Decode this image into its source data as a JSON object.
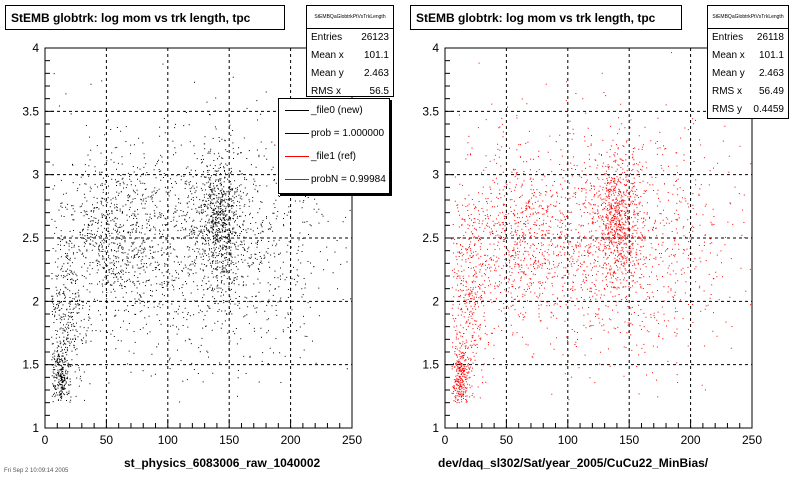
{
  "colors": {
    "ref": "#ff0000",
    "new": "#000000",
    "frame": "#000000",
    "grid": "#000000"
  },
  "panels": [
    {
      "title": "StEMB globtrk: log mom vs trk length, tpc",
      "stats": {
        "name": "StEMBQaGlobtrkPtVsTrkLength",
        "rows": [
          {
            "label": "Entries",
            "value": "26123"
          },
          {
            "label": "Mean x",
            "value": "101.1"
          },
          {
            "label": "Mean y",
            "value": "2.463"
          },
          {
            "label": "RMS x",
            "value": "56.5"
          }
        ]
      },
      "legend": [
        {
          "label": "_file0 (new)",
          "color": "#000000"
        },
        {
          "label": "prob = 1.000000",
          "color": "#000000"
        },
        {
          "label": "_file1 (ref)",
          "color": "#ff0000"
        },
        {
          "label": "probN = 0.99984",
          "color": "#ff0000"
        }
      ],
      "xtitle": "st_physics_6083006_raw_1040002"
    },
    {
      "title": "StEMB globtrk: log mom vs trk length, tpc",
      "stats": {
        "name": "StEMBQaGlobtrkPtVsTrkLength",
        "rows": [
          {
            "label": "Entries",
            "value": "26118"
          },
          {
            "label": "Mean x",
            "value": "101.1"
          },
          {
            "label": "Mean y",
            "value": "2.463"
          },
          {
            "label": "RMS x",
            "value": "56.49"
          },
          {
            "label": "RMS y",
            "value": "0.4459"
          }
        ]
      },
      "xtitle": "dev/daq_sl302/Sat/year_2005/CuCu22_MinBias/"
    }
  ],
  "footer": "Fri Sep 2 10:09:14 2005",
  "chart_data": [
    {
      "type": "scatter",
      "title": "StEMB globtrk: log mom vs trk length, tpc",
      "xlabel": "st_physics_6083006_raw_1040002",
      "ylabel": "",
      "xlim": [
        0,
        250
      ],
      "ylim": [
        1,
        4
      ],
      "xticks": [
        0,
        50,
        100,
        150,
        200,
        250
      ],
      "yticks": [
        1,
        1.5,
        2,
        2.5,
        3,
        3.5,
        4
      ],
      "grid": true,
      "color": "#000000",
      "legend_position": "top-right",
      "entries": 26123,
      "mean_x": 101.1,
      "mean_y": 2.463,
      "rms_x": 56.5,
      "density_clusters": [
        {
          "x": 12,
          "y": 1.4,
          "sx": 4,
          "sy": 0.12,
          "weight": 0.08
        },
        {
          "x": 18,
          "y": 1.9,
          "sx": 8,
          "sy": 0.35,
          "weight": 0.1
        },
        {
          "x": 60,
          "y": 2.5,
          "sx": 30,
          "sy": 0.35,
          "weight": 0.3
        },
        {
          "x": 140,
          "y": 2.65,
          "sx": 9,
          "sy": 0.25,
          "weight": 0.2
        },
        {
          "x": 150,
          "y": 2.4,
          "sx": 40,
          "sy": 0.45,
          "weight": 0.27
        },
        {
          "x": 125,
          "y": 2.5,
          "sx": 70,
          "sy": 0.7,
          "weight": 0.05
        }
      ]
    },
    {
      "type": "scatter",
      "title": "StEMB globtrk: log mom vs trk length, tpc",
      "xlabel": "dev/daq_sl302/Sat/year_2005/CuCu22_MinBias/",
      "ylabel": "",
      "xlim": [
        0,
        250
      ],
      "ylim": [
        1,
        4
      ],
      "xticks": [
        0,
        50,
        100,
        150,
        200,
        250
      ],
      "yticks": [
        1,
        1.5,
        2,
        2.5,
        3,
        3.5,
        4
      ],
      "grid": true,
      "color": "#ff0000",
      "entries": 26118,
      "mean_x": 101.1,
      "mean_y": 2.463,
      "rms_x": 56.49,
      "rms_y": 0.4459,
      "density_clusters": [
        {
          "x": 12,
          "y": 1.4,
          "sx": 4,
          "sy": 0.12,
          "weight": 0.08
        },
        {
          "x": 18,
          "y": 1.9,
          "sx": 8,
          "sy": 0.35,
          "weight": 0.1
        },
        {
          "x": 60,
          "y": 2.5,
          "sx": 30,
          "sy": 0.35,
          "weight": 0.3
        },
        {
          "x": 140,
          "y": 2.65,
          "sx": 9,
          "sy": 0.25,
          "weight": 0.2
        },
        {
          "x": 150,
          "y": 2.4,
          "sx": 40,
          "sy": 0.45,
          "weight": 0.27
        },
        {
          "x": 125,
          "y": 2.5,
          "sx": 70,
          "sy": 0.7,
          "weight": 0.05
        }
      ]
    }
  ]
}
